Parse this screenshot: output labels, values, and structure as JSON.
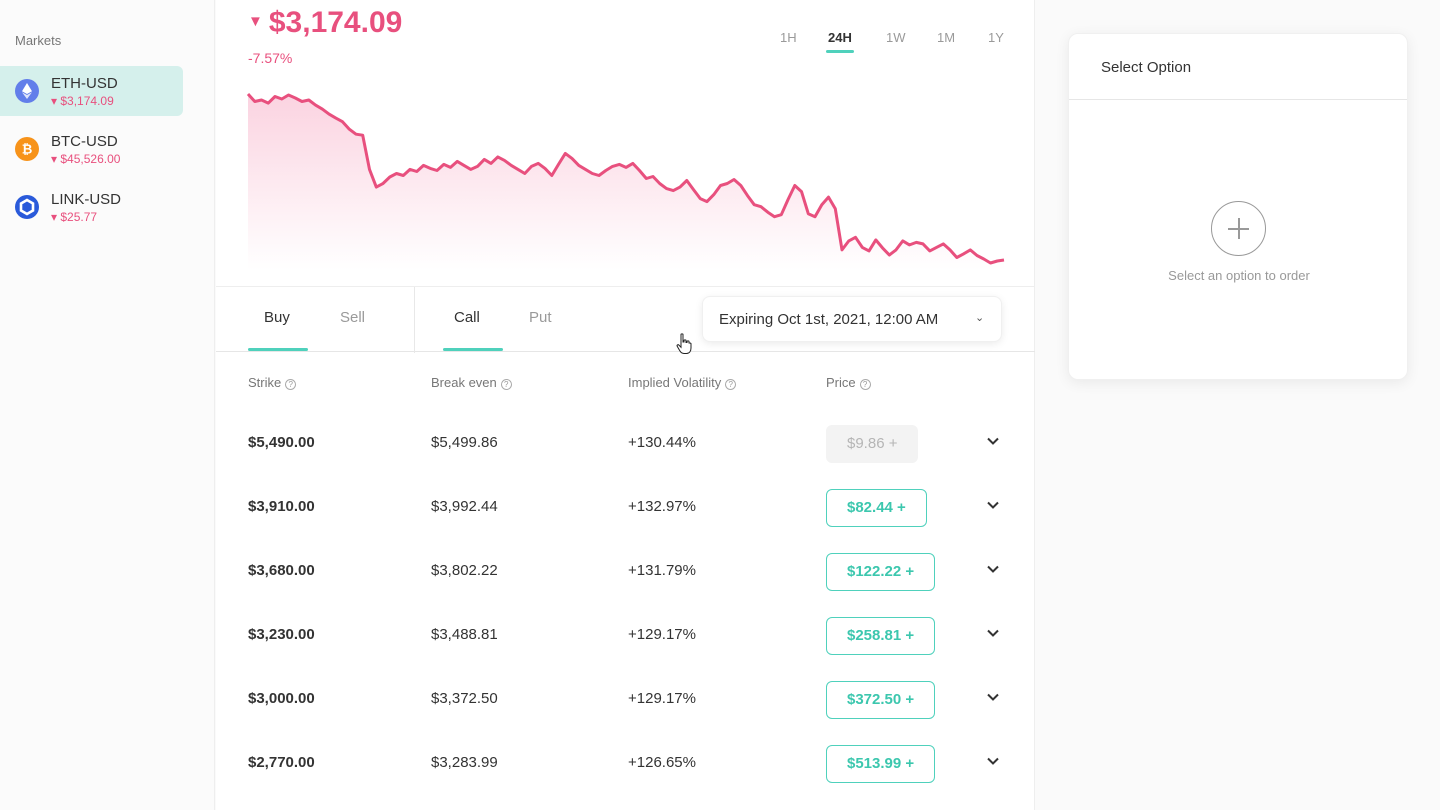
{
  "sidebar": {
    "title": "Markets",
    "markets": [
      {
        "name": "ETH-USD",
        "price": "$3,174.09",
        "color": "#627eea",
        "icon": "ethereum-icon",
        "active": true
      },
      {
        "name": "BTC-USD",
        "price": "$45,526.00",
        "color": "#f7931a",
        "icon": "bitcoin-icon",
        "active": false
      },
      {
        "name": "LINK-USD",
        "price": "$25.77",
        "color": "#2a5ada",
        "icon": "chainlink-icon",
        "active": false
      }
    ]
  },
  "header": {
    "price": "$3,174.09",
    "change": "-7.57%",
    "timeframes": [
      "1H",
      "24H",
      "1W",
      "1M",
      "1Y"
    ],
    "active_timeframe": "24H"
  },
  "chart_data": {
    "type": "area",
    "color": "#e8507e",
    "values": [
      3440,
      3425,
      3428,
      3422,
      3435,
      3430,
      3438,
      3432,
      3425,
      3428,
      3418,
      3410,
      3400,
      3392,
      3385,
      3370,
      3360,
      3358,
      3290,
      3255,
      3262,
      3275,
      3282,
      3278,
      3290,
      3286,
      3298,
      3292,
      3288,
      3300,
      3294,
      3306,
      3298,
      3290,
      3296,
      3310,
      3302,
      3315,
      3308,
      3298,
      3290,
      3282,
      3296,
      3302,
      3292,
      3278,
      3300,
      3322,
      3312,
      3298,
      3290,
      3282,
      3278,
      3288,
      3296,
      3300,
      3294,
      3302,
      3288,
      3272,
      3276,
      3262,
      3252,
      3248,
      3255,
      3268,
      3250,
      3232,
      3226,
      3240,
      3258,
      3262,
      3270,
      3258,
      3238,
      3220,
      3216,
      3205,
      3196,
      3200,
      3230,
      3258,
      3246,
      3202,
      3196,
      3220,
      3235,
      3212,
      3130,
      3148,
      3155,
      3135,
      3128,
      3150,
      3134,
      3120,
      3130,
      3148,
      3140,
      3145,
      3142,
      3128,
      3135,
      3142,
      3130,
      3115,
      3122,
      3130,
      3119,
      3112,
      3104,
      3108,
      3110
    ]
  },
  "tabs": {
    "side": [
      "Buy",
      "Sell"
    ],
    "active_side": "Buy",
    "type": [
      "Call",
      "Put"
    ],
    "active_type": "Call"
  },
  "expiry": {
    "label": "Expiring Oct 1st, 2021, 12:00 AM"
  },
  "table": {
    "headers": [
      "Strike",
      "Break even",
      "Implied Volatility",
      "Price"
    ],
    "rows": [
      {
        "strike": "$5,490.00",
        "break_even": "$5,499.86",
        "iv": "+130.44%",
        "price": "$9.86 +",
        "disabled": true
      },
      {
        "strike": "$3,910.00",
        "break_even": "$3,992.44",
        "iv": "+132.97%",
        "price": "$82.44 +",
        "disabled": false
      },
      {
        "strike": "$3,680.00",
        "break_even": "$3,802.22",
        "iv": "+131.79%",
        "price": "$122.22 +",
        "disabled": false
      },
      {
        "strike": "$3,230.00",
        "break_even": "$3,488.81",
        "iv": "+129.17%",
        "price": "$258.81 +",
        "disabled": false
      },
      {
        "strike": "$3,000.00",
        "break_even": "$3,372.50",
        "iv": "+129.17%",
        "price": "$372.50 +",
        "disabled": false
      },
      {
        "strike": "$2,770.00",
        "break_even": "$3,283.99",
        "iv": "+126.65%",
        "price": "$513.99 +",
        "disabled": false
      }
    ]
  },
  "panel": {
    "title": "Select Option",
    "hint": "Select an option to order"
  }
}
